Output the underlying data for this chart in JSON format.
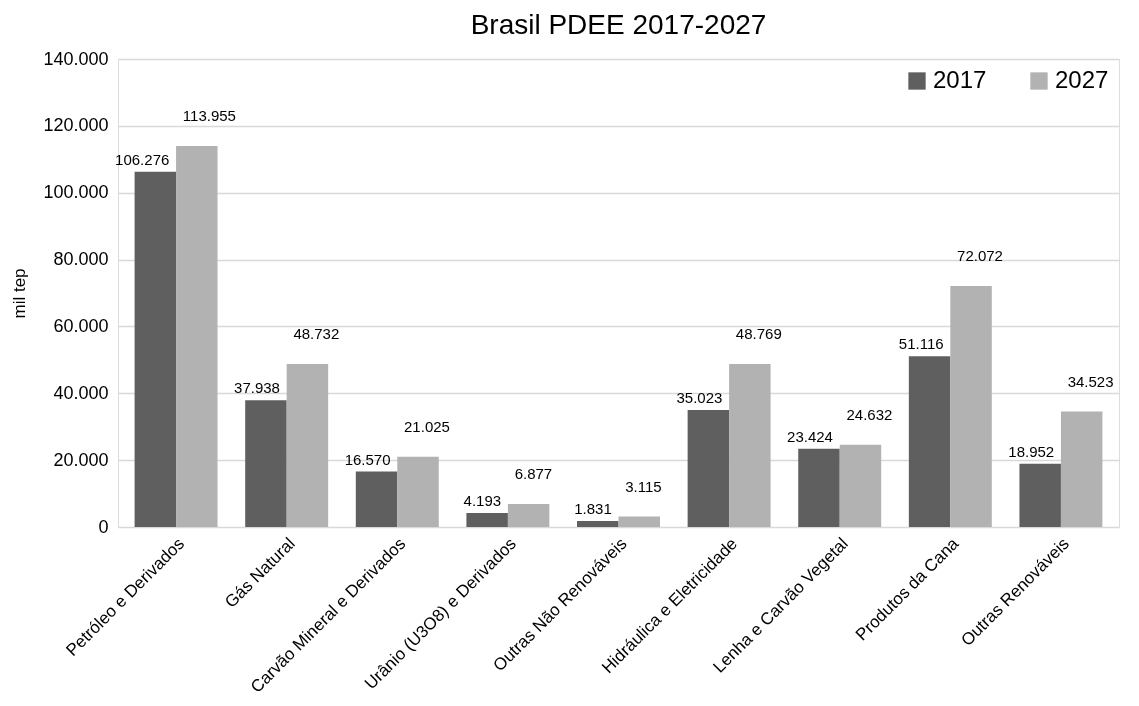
{
  "chart_data": {
    "type": "bar",
    "title": "Brasil PDEE 2017-2027",
    "ylabel": "mil tep",
    "categories": [
      "Petróleo e Derivados",
      "Gás Natural",
      "Carvão Mineral e Derivados",
      "Urânio (U3O8) e Derivados",
      "Outras Não Renováveis",
      "Hidráulica e Eletricidade",
      "Lenha e Carvão Vegetal",
      "Produtos da Cana",
      "Outras Renováveis"
    ],
    "series": [
      {
        "name": "2017",
        "color": "#5f5f5f",
        "values": [
          106276,
          37938,
          16570,
          4193,
          1831,
          35023,
          23424,
          51116,
          18952
        ],
        "value_labels": [
          "106.276",
          "37.938",
          "16.570",
          "4.193",
          "1.831",
          "35.023",
          "23.424",
          "51.116",
          "18.952"
        ]
      },
      {
        "name": "2027",
        "color": "#b2b2b2",
        "values": [
          113955,
          48732,
          21025,
          6877,
          3115,
          48769,
          24632,
          72072,
          34523
        ],
        "value_labels": [
          "113.955",
          "48.732",
          "21.025",
          "6.877",
          "3.115",
          "48.769",
          "24.632",
          "72.072",
          "34.523"
        ]
      }
    ],
    "ylim": [
      0,
      140000
    ],
    "yticks": [
      0,
      {
        "value": 20000,
        "label": "20.000"
      },
      {
        "value": 40000,
        "label": "40.000"
      },
      {
        "value": 60000,
        "label": "60.000"
      },
      {
        "value": 80000,
        "label": "80.000"
      },
      {
        "value": 100000,
        "label": "100.000"
      },
      {
        "value": 120000,
        "label": "120.000"
      },
      {
        "value": 140000,
        "label": "140.000"
      }
    ],
    "grid": "y",
    "legend": "top right"
  }
}
